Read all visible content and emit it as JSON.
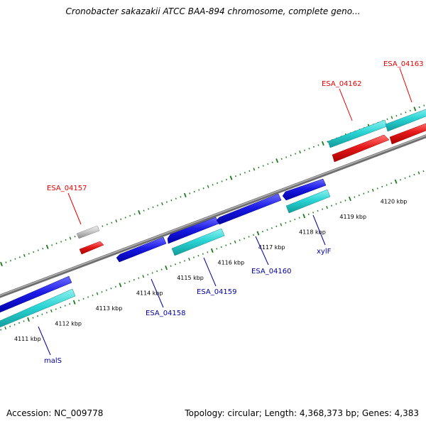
{
  "header": {
    "title": "Cronobacter sakazakii ATCC BAA-894 chromosome, complete geno..."
  },
  "footer": {
    "accession": "Accession: NC_009778",
    "summary": "Topology: circular; Length: 4,368,373 bp; Genes: 4,383"
  },
  "colors": {
    "forward_cds": "#1a1ae6",
    "forward_gene": "#2ad4d4",
    "reverse_cds": "#e61a1a",
    "reverse_gene": "#c8c8c8",
    "backbone": "#808080",
    "tick": "#1a7a1a",
    "forward_label": "#0000a0",
    "reverse_label": "#e60000"
  },
  "ticks": [
    {
      "label": "4111 kbp"
    },
    {
      "label": "4112 kbp"
    },
    {
      "label": "4113 kbp"
    },
    {
      "label": "4114 kbp"
    },
    {
      "label": "4115 kbp"
    },
    {
      "label": "4116 kbp"
    },
    {
      "label": "4117 kbp"
    },
    {
      "label": "4118 kbp"
    },
    {
      "label": "4119 kbp"
    },
    {
      "label": "4120 kbp"
    }
  ],
  "genes": [
    {
      "label": "malS",
      "strand": "forward"
    },
    {
      "label": "ESA_04157",
      "strand": "reverse"
    },
    {
      "label": "ESA_04158",
      "strand": "forward"
    },
    {
      "label": "ESA_04159",
      "strand": "forward"
    },
    {
      "label": "ESA_04160",
      "strand": "forward"
    },
    {
      "label": "xylF",
      "strand": "forward"
    },
    {
      "label": "ESA_04162",
      "strand": "reverse"
    },
    {
      "label": "ESA_04163",
      "strand": "reverse"
    }
  ]
}
